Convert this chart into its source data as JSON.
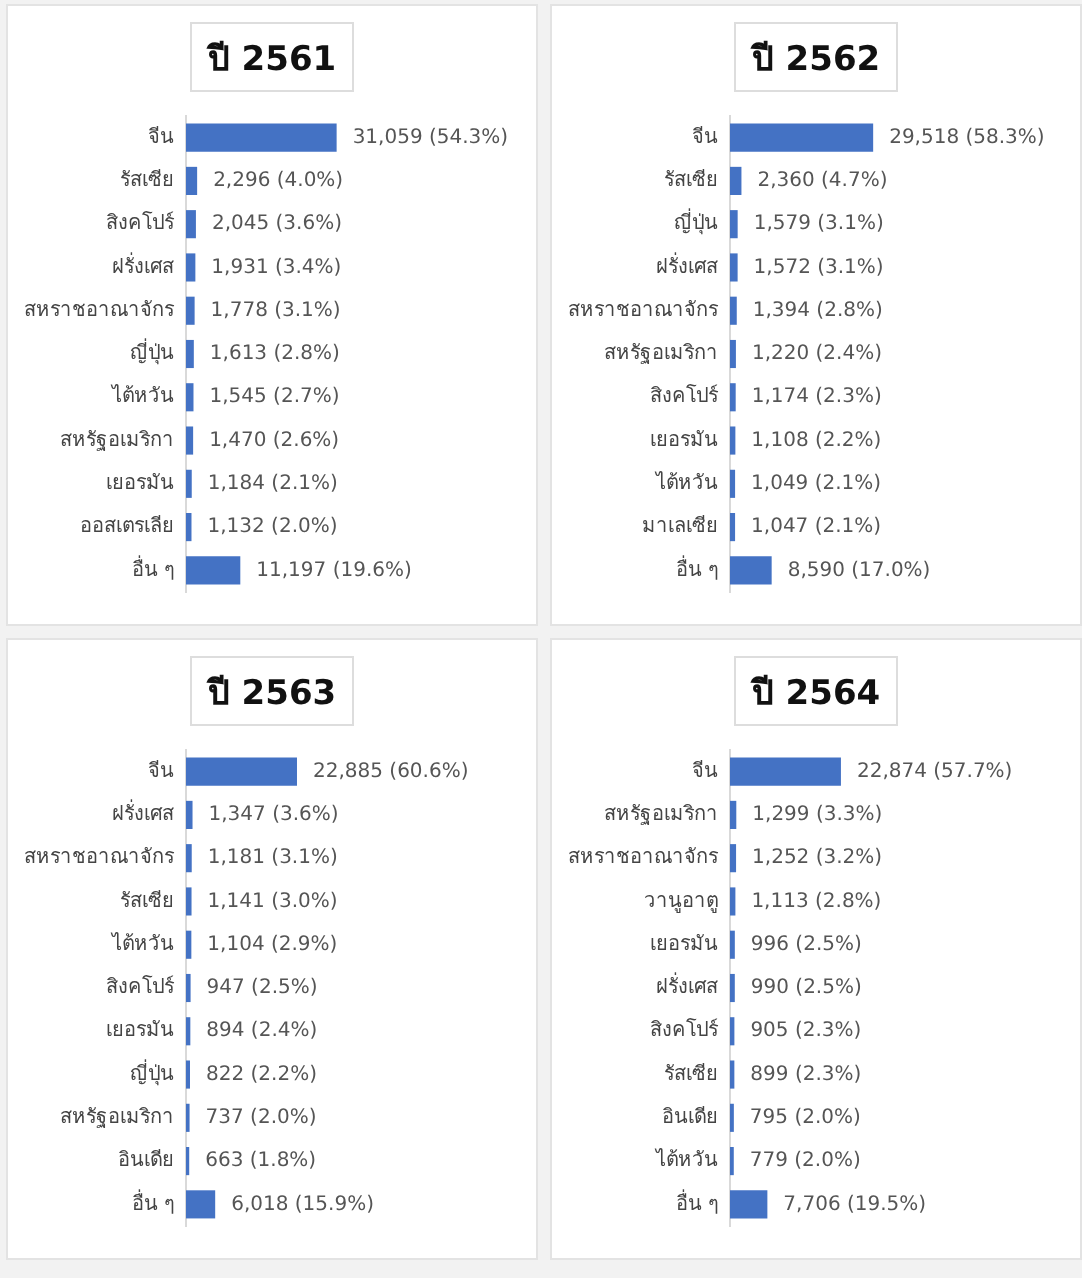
{
  "chart_data": [
    {
      "type": "bar",
      "orientation": "horizontal",
      "title": "ปี 2561",
      "color": "#4472c4",
      "tick_labels": "y",
      "grid": false,
      "legend": false,
      "categories": [
        "จีน",
        "รัสเซีย",
        "สิงคโปร์",
        "ฝรั่งเศส",
        "สหราชอาณาจักร",
        "ญี่ปุ่น",
        "ไต้หวัน",
        "สหรัฐอเมริกา",
        "เยอรมัน",
        "ออสเตรเลีย",
        "อื่น ๆ"
      ],
      "values": [
        31059,
        2296,
        2045,
        1931,
        1778,
        1613,
        1545,
        1470,
        1184,
        1132,
        11197
      ],
      "value_labels": [
        "31,059 (54.3%)",
        "2,296 (4.0%)",
        "2,045 (3.6%)",
        "1,931 (3.4%)",
        "1,778 (3.1%)",
        "1,613 (2.8%)",
        "1,545 (2.7%)",
        "1,470 (2.6%)",
        "1,184 (2.1%)",
        "1,132 (2.0%)",
        "11,197 (19.6%)"
      ]
    },
    {
      "type": "bar",
      "orientation": "horizontal",
      "title": "ปี 2562",
      "color": "#4472c4",
      "tick_labels": "y",
      "grid": false,
      "legend": false,
      "categories": [
        "จีน",
        "รัสเซีย",
        "ญี่ปุ่น",
        "ฝรั่งเศส",
        "สหราชอาณาจักร",
        "สหรัฐอเมริกา",
        "สิงคโปร์",
        "เยอรมัน",
        "ไต้หวัน",
        "มาเลเซีย",
        "อื่น ๆ"
      ],
      "values": [
        29518,
        2360,
        1579,
        1572,
        1394,
        1220,
        1174,
        1108,
        1049,
        1047,
        8590
      ],
      "value_labels": [
        "29,518 (58.3%)",
        "2,360 (4.7%)",
        "1,579 (3.1%)",
        "1,572 (3.1%)",
        "1,394 (2.8%)",
        "1,220 (2.4%)",
        "1,174 (2.3%)",
        "1,108 (2.2%)",
        "1,049 (2.1%)",
        "1,047 (2.1%)",
        "8,590 (17.0%)"
      ]
    },
    {
      "type": "bar",
      "orientation": "horizontal",
      "title": "ปี 2563",
      "color": "#4472c4",
      "tick_labels": "y",
      "grid": false,
      "legend": false,
      "categories": [
        "จีน",
        "ฝรั่งเศส",
        "สหราชอาณาจักร",
        "รัสเซีย",
        "ไต้หวัน",
        "สิงคโปร์",
        "เยอรมัน",
        "ญี่ปุ่น",
        "สหรัฐอเมริกา",
        "อินเดีย",
        "อื่น ๆ"
      ],
      "values": [
        22885,
        1347,
        1181,
        1141,
        1104,
        947,
        894,
        822,
        737,
        663,
        6018
      ],
      "value_labels": [
        "22,885 (60.6%)",
        "1,347 (3.6%)",
        "1,181 (3.1%)",
        "1,141 (3.0%)",
        "1,104 (2.9%)",
        "947 (2.5%)",
        "894 (2.4%)",
        "822 (2.2%)",
        "737 (2.0%)",
        "663 (1.8%)",
        "6,018 (15.9%)"
      ]
    },
    {
      "type": "bar",
      "orientation": "horizontal",
      "title": "ปี 2564",
      "color": "#4472c4",
      "tick_labels": "y",
      "grid": false,
      "legend": false,
      "categories": [
        "จีน",
        "สหรัฐอเมริกา",
        "สหราชอาณาจักร",
        "วานูอาตู",
        "เยอรมัน",
        "ฝรั่งเศส",
        "สิงคโปร์",
        "รัสเซีย",
        "อินเดีย",
        "ไต้หวัน",
        "อื่น ๆ"
      ],
      "values": [
        22874,
        1299,
        1252,
        1113,
        996,
        990,
        905,
        899,
        795,
        779,
        7706
      ],
      "value_labels": [
        "22,874 (57.7%)",
        "1,299 (3.3%)",
        "1,252 (3.2%)",
        "1,113 (2.8%)",
        "996 (2.5%)",
        "990 (2.5%)",
        "905 (2.3%)",
        "899 (2.3%)",
        "795 (2.0%)",
        "779 (2.0%)",
        "7,706 (19.5%)"
      ]
    }
  ]
}
